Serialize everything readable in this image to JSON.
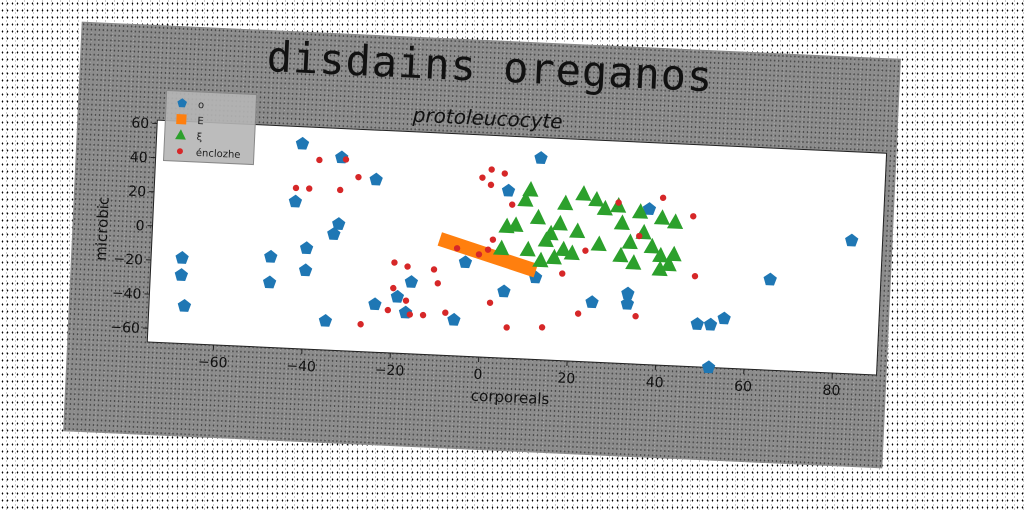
{
  "chart_data": {
    "type": "scatter",
    "title": "disdains oreganos",
    "subtitle": "protoleucocyte",
    "xlabel": "corporeals",
    "ylabel": "microbic",
    "xlim": [
      -75,
      90
    ],
    "ylim": [
      -68,
      62
    ],
    "xticks": [
      -60,
      -40,
      -20,
      0,
      20,
      40,
      60,
      80
    ],
    "yticks": [
      -60,
      -40,
      -20,
      0,
      20,
      40,
      60
    ],
    "grid": false,
    "legend_position": "top-left",
    "series": [
      {
        "name": "o",
        "marker": "pentagon",
        "color": "#1f77b4",
        "points": [
          [
            -42,
            52
          ],
          [
            -33,
            45
          ],
          [
            -25,
            33
          ],
          [
            -43,
            18
          ],
          [
            -33,
            6
          ],
          [
            -34,
            0
          ],
          [
            -40,
            -9
          ],
          [
            -48,
            -15
          ],
          [
            -68,
            -18
          ],
          [
            -68,
            -28
          ],
          [
            -48,
            -30
          ],
          [
            -40,
            -22
          ],
          [
            -67,
            -46
          ],
          [
            -35,
            -51
          ],
          [
            -24,
            -40
          ],
          [
            -19,
            -35
          ],
          [
            -16,
            -26
          ],
          [
            -17,
            -44
          ],
          [
            -6,
            -47
          ],
          [
            -4,
            -13
          ],
          [
            5,
            30
          ],
          [
            12,
            50
          ],
          [
            12,
            -20
          ],
          [
            5,
            -29
          ],
          [
            25,
            -33
          ],
          [
            33,
            -27
          ],
          [
            33,
            -33
          ],
          [
            37,
            23
          ],
          [
            49,
            -43
          ],
          [
            52,
            -43
          ],
          [
            55,
            -39
          ],
          [
            65,
            -15
          ],
          [
            52,
            -68
          ],
          [
            83,
            10
          ]
        ]
      },
      {
        "name": "E",
        "marker": "line",
        "color": "#ff7f0e",
        "points": [
          [
            -10,
            0
          ],
          [
            12,
            -16
          ]
        ]
      },
      {
        "name": "ξ",
        "marker": "triangle",
        "color": "#2ca02c",
        "points": [
          [
            10,
            31
          ],
          [
            9,
            25
          ],
          [
            18,
            24
          ],
          [
            12,
            15
          ],
          [
            17,
            12
          ],
          [
            7,
            10
          ],
          [
            5,
            9
          ],
          [
            15,
            6
          ],
          [
            21,
            8
          ],
          [
            4,
            -4
          ],
          [
            10,
            -4
          ],
          [
            14,
            2
          ],
          [
            18,
            -3
          ],
          [
            20,
            -5
          ],
          [
            16,
            -8
          ],
          [
            13,
            -10
          ],
          [
            22,
            30
          ],
          [
            25,
            27
          ],
          [
            27,
            22
          ],
          [
            30,
            24
          ],
          [
            35,
            21
          ],
          [
            31,
            14
          ],
          [
            40,
            18
          ],
          [
            43,
            16
          ],
          [
            36,
            9
          ],
          [
            33,
            3
          ],
          [
            38,
            1
          ],
          [
            40,
            -4
          ],
          [
            43,
            -3
          ],
          [
            26,
            1
          ],
          [
            31,
            -5
          ],
          [
            34,
            -9
          ],
          [
            40,
            -12
          ],
          [
            42,
            -9
          ]
        ]
      },
      {
        "name": "énclozhe",
        "marker": "dot",
        "color": "#d62728",
        "points": [
          [
            -32,
            44
          ],
          [
            -29,
            34
          ],
          [
            -33,
            26
          ],
          [
            -38,
            43
          ],
          [
            -40,
            26
          ],
          [
            -43,
            26
          ],
          [
            1,
            42
          ],
          [
            4,
            40
          ],
          [
            -1,
            37
          ],
          [
            1,
            33
          ],
          [
            6,
            22
          ],
          [
            30,
            26
          ],
          [
            40,
            30
          ],
          [
            47,
            20
          ],
          [
            35,
            7
          ],
          [
            23,
            -3
          ],
          [
            -11,
            -18
          ],
          [
            -17,
            -17
          ],
          [
            -20,
            -15
          ],
          [
            -10,
            -26
          ],
          [
            -20,
            -30
          ],
          [
            -21,
            -43
          ],
          [
            -16,
            -45
          ],
          [
            -8,
            -43
          ],
          [
            -17,
            -37
          ],
          [
            -27,
            -52
          ],
          [
            -13,
            -45
          ],
          [
            2,
            -36
          ],
          [
            6,
            -50
          ],
          [
            14,
            -49
          ],
          [
            22,
            -40
          ],
          [
            35,
            -40
          ],
          [
            48,
            -15
          ],
          [
            18,
            -17
          ],
          [
            1,
            -5
          ],
          [
            -1,
            -8
          ],
          [
            2,
            1
          ],
          [
            -6,
            -5
          ]
        ]
      }
    ]
  }
}
